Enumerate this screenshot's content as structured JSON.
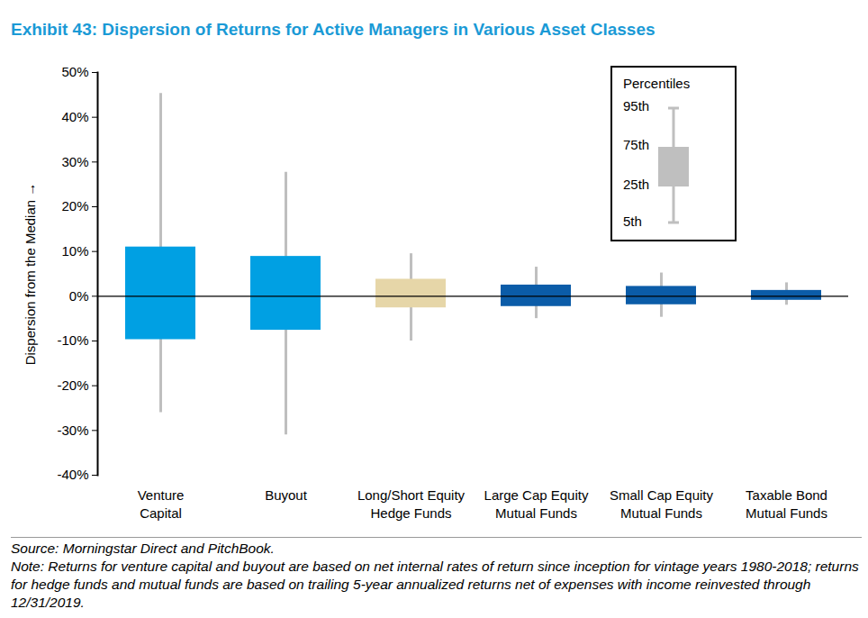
{
  "chart_data": {
    "type": "boxplot",
    "title": "Exhibit 43: Dispersion of Returns for Active Managers in Various Asset Classes",
    "ylabel": "Dispersion from the Median",
    "categories": [
      "Venture\nCapital",
      "Buyout",
      "Long/Short Equity\nHedge Funds",
      "Large Cap Equity\nMutual Funds",
      "Small Cap Equity\nMutual Funds",
      "Taxable Bond\nMutual Funds"
    ],
    "p5": [
      -26,
      -31,
      -10,
      -5,
      -4.7,
      -2
    ],
    "p25": [
      -9.7,
      -7.6,
      -2.6,
      -2.3,
      -1.9,
      -0.9
    ],
    "p75": [
      11,
      8.9,
      3.8,
      2.5,
      2.2,
      1.3
    ],
    "p95": [
      45.3,
      27.7,
      9.5,
      6.5,
      5.2,
      3
    ],
    "baseline": 0,
    "colors": [
      "#00a0e3",
      "#00a0e3",
      "#e6d6a8",
      "#0b5ca8",
      "#0b5ca8",
      "#0b5ca8"
    ],
    "whisker_color": "#bfbfbf",
    "ylim": [
      -40,
      50
    ],
    "yticks": [
      {
        "value": -40,
        "label": "-40%"
      },
      {
        "value": -30,
        "label": "-30%"
      },
      {
        "value": -20,
        "label": "-20%"
      },
      {
        "value": -10,
        "label": "-10%"
      },
      {
        "value": 0,
        "label": "0%"
      },
      {
        "value": 10,
        "label": "10%"
      },
      {
        "value": 20,
        "label": "20%"
      },
      {
        "value": 30,
        "label": "30%"
      },
      {
        "value": 40,
        "label": "40%"
      },
      {
        "value": 50,
        "label": "50%"
      }
    ],
    "legend": "top-right",
    "legend_title": "Percentiles",
    "percentile_labels": [
      "95th",
      "75th",
      "25th",
      "5th"
    ],
    "source": "Source: Morningstar Direct and PitchBook.",
    "note": "Note: Returns for venture capital and buyout are based on net internal rates of return since inception for vintage years 1980-2018; returns for hedge funds and mutual funds are based on trailing 5-year annualized returns net of expenses with income reinvested through 12/31/2019."
  }
}
